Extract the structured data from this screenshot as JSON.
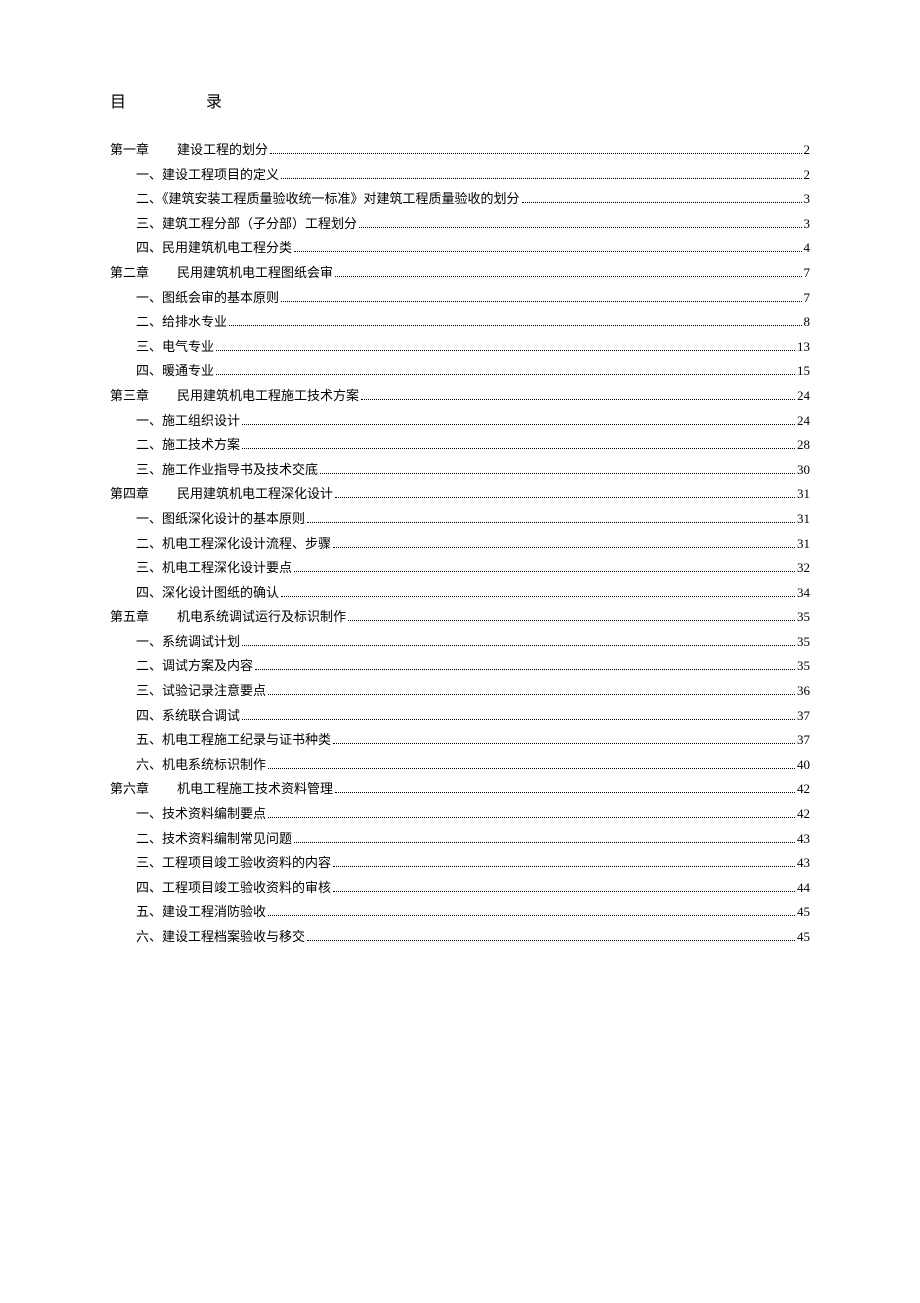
{
  "title_left": "目",
  "title_right": "录",
  "entries": [
    {
      "level": 1,
      "label_prefix": "第一章",
      "label": "建设工程的划分",
      "page": "2"
    },
    {
      "level": 2,
      "label": "一、建设工程项目的定义",
      "page": "2"
    },
    {
      "level": 2,
      "label": "二、《建筑安装工程质量验收统一标准》对建筑工程质量验收的划分",
      "page": "3"
    },
    {
      "level": 2,
      "label": "三、建筑工程分部（子分部）工程划分",
      "page": "3"
    },
    {
      "level": 2,
      "label": "四、民用建筑机电工程分类",
      "page": "4"
    },
    {
      "level": 1,
      "label_prefix": "第二章",
      "label": "民用建筑机电工程图纸会审",
      "page": "7"
    },
    {
      "level": 2,
      "label": "一、图纸会审的基本原则",
      "page": "7"
    },
    {
      "level": 2,
      "label": "二、给排水专业",
      "page": "8"
    },
    {
      "level": 2,
      "label": "三、电气专业",
      "page": "13"
    },
    {
      "level": 2,
      "label": "四、暖通专业",
      "page": "15"
    },
    {
      "level": 1,
      "label_prefix": "第三章",
      "label": "民用建筑机电工程施工技术方案",
      "page": "24"
    },
    {
      "level": 2,
      "label": "一、施工组织设计",
      "page": "24"
    },
    {
      "level": 2,
      "label": "二、施工技术方案",
      "page": "28"
    },
    {
      "level": 2,
      "label": "三、施工作业指导书及技术交底",
      "page": "30"
    },
    {
      "level": 1,
      "label_prefix": "第四章",
      "label": "民用建筑机电工程深化设计",
      "page": "31"
    },
    {
      "level": 2,
      "label": "一、图纸深化设计的基本原则",
      "page": "31"
    },
    {
      "level": 2,
      "label": "二、机电工程深化设计流程、步骤",
      "page": "31"
    },
    {
      "level": 2,
      "label": "三、机电工程深化设计要点",
      "page": "32"
    },
    {
      "level": 2,
      "label": "四、深化设计图纸的确认",
      "page": "34"
    },
    {
      "level": 1,
      "label_prefix": "第五章",
      "label": "机电系统调试运行及标识制作",
      "page": "35"
    },
    {
      "level": 2,
      "label": "一、系统调试计划",
      "page": "35"
    },
    {
      "level": 2,
      "label": "二、调试方案及内容",
      "page": "35"
    },
    {
      "level": 2,
      "label": "三、试验记录注意要点",
      "page": "36"
    },
    {
      "level": 2,
      "label": "四、系统联合调试",
      "page": "37"
    },
    {
      "level": 2,
      "label": "五、机电工程施工纪录与证书种类",
      "page": "37"
    },
    {
      "level": 2,
      "label": "六、机电系统标识制作",
      "page": "40"
    },
    {
      "level": 1,
      "label_prefix": "第六章",
      "label": "机电工程施工技术资料管理",
      "page": "42"
    },
    {
      "level": 2,
      "label": "一、技术资料编制要点",
      "page": "42"
    },
    {
      "level": 2,
      "label": "二、技术资料编制常见问题",
      "page": "43"
    },
    {
      "level": 2,
      "label": "三、工程项目竣工验收资料的内容",
      "page": "43"
    },
    {
      "level": 2,
      "label": "四、工程项目竣工验收资料的审核",
      "page": "44"
    },
    {
      "level": 2,
      "label": "五、建设工程消防验收",
      "page": "45"
    },
    {
      "level": 2,
      "label": "六、建设工程档案验收与移交",
      "page": "45"
    }
  ]
}
